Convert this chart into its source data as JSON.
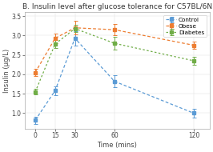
{
  "title": "B. Insulin level after glucose tolerance for C57BL/6N",
  "xlabel": "Time (mins)",
  "ylabel": "Insulin (µg/L)",
  "x": [
    0,
    15,
    30,
    60,
    120
  ],
  "control": {
    "y": [
      0.82,
      1.58,
      2.93,
      1.82,
      1.0
    ],
    "yerr": [
      0.09,
      0.12,
      0.18,
      0.15,
      0.12
    ],
    "color": "#5B9BD5",
    "label": "Control",
    "marker": "s"
  },
  "obese": {
    "y": [
      2.05,
      2.93,
      3.2,
      3.15,
      2.75
    ],
    "yerr": [
      0.09,
      0.13,
      0.17,
      0.14,
      0.1
    ],
    "color": "#ED7D31",
    "label": "Obese",
    "marker": "s"
  },
  "diabetes": {
    "y": [
      1.55,
      2.78,
      3.18,
      2.8,
      2.35
    ],
    "yerr": [
      0.07,
      0.1,
      0.09,
      0.16,
      0.1
    ],
    "color": "#70AD47",
    "label": "Diabetes",
    "marker": "s"
  },
  "ylim": [
    0.6,
    3.6
  ],
  "xlim": [
    -8,
    132
  ],
  "xticks": [
    0,
    15,
    30,
    60,
    120
  ],
  "yticks": [
    1.0,
    1.5,
    2.0,
    2.5,
    3.0,
    3.5
  ],
  "bg_color": "#ffffff",
  "plot_bg": "#ffffff",
  "title_fontsize": 6.5,
  "axis_fontsize": 6,
  "tick_fontsize": 5.5,
  "legend_fontsize": 5.2
}
